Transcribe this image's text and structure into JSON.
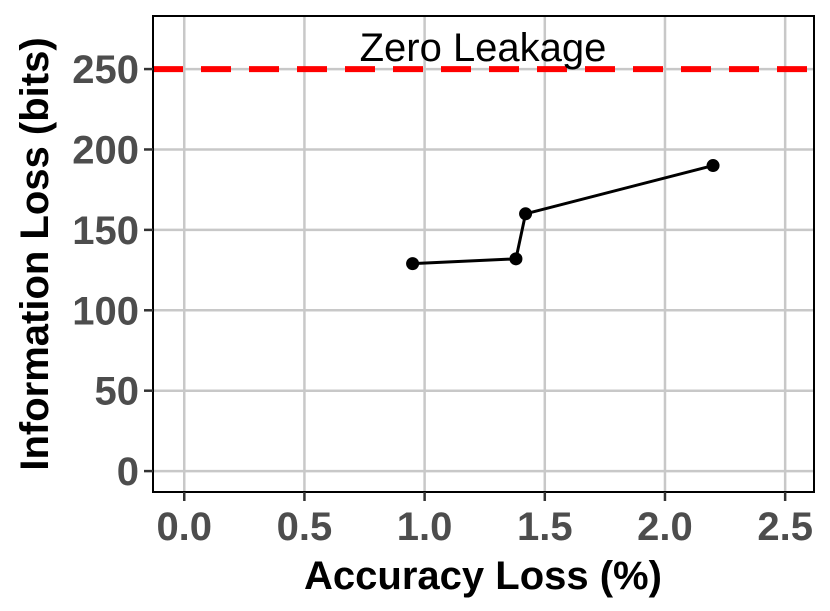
{
  "chart_data": {
    "type": "line",
    "xlabel": "Accuracy Loss (%)",
    "ylabel": "Information Loss (bits)",
    "xlim": [
      -0.13,
      2.62
    ],
    "ylim": [
      -13,
      283
    ],
    "x_ticks": [
      0.0,
      0.5,
      1.0,
      1.5,
      2.0,
      2.5
    ],
    "x_tick_labels": [
      "0.0",
      "0.5",
      "1.0",
      "1.5",
      "2.0",
      "2.5"
    ],
    "y_ticks": [
      0,
      50,
      100,
      150,
      200,
      250
    ],
    "y_tick_labels": [
      "0",
      "50",
      "100",
      "150",
      "200",
      "250"
    ],
    "grid": true,
    "series": [
      {
        "x": [
          0.95,
          1.38,
          1.42,
          2.2
        ],
        "y": [
          129,
          132,
          160,
          190
        ],
        "color": "#000000",
        "markers": true
      }
    ],
    "reference_line": {
      "y": 250,
      "label": "Zero Leakage",
      "color": "#ff0000",
      "style": "dashed"
    }
  }
}
